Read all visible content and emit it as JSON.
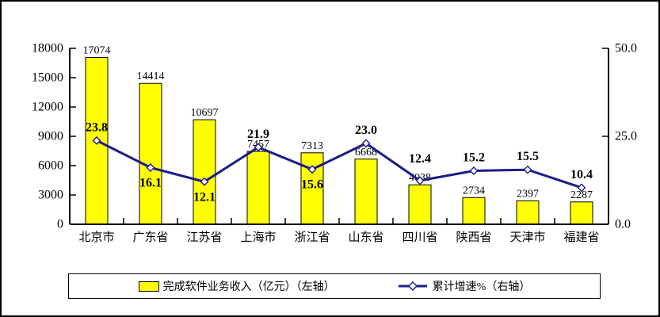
{
  "chart_data": {
    "type": "bar",
    "combo": "bar+line",
    "title": "",
    "categories": [
      "北京市",
      "广东省",
      "江苏省",
      "上海市",
      "浙江省",
      "山东省",
      "四川省",
      "陕西省",
      "天津市",
      "福建省"
    ],
    "series": [
      {
        "name": "完成软件业务收入（亿元）（左轴）",
        "render": "bar",
        "axis": "left",
        "values": [
          17074,
          14414,
          10697,
          7457,
          7313,
          6668,
          4038,
          2734,
          2397,
          2287
        ],
        "color": "#FFFF00",
        "border_color": "#000000"
      },
      {
        "name": "累计增速%（右轴）",
        "render": "line",
        "axis": "right",
        "values": [
          23.8,
          16.1,
          12.1,
          21.9,
          15.6,
          23.0,
          12.4,
          15.2,
          15.5,
          10.4
        ],
        "color": "#1B1B8C",
        "marker": "open-diamond",
        "marker_fill": "#FFFFFF"
      }
    ],
    "left_axis": {
      "min": 0,
      "max": 18000,
      "step": 3000,
      "tick_labels": [
        "0",
        "3000",
        "6000",
        "9000",
        "12000",
        "15000",
        "18000"
      ]
    },
    "right_axis": {
      "min": 0,
      "max": 50,
      "tick_labels": [
        "0.0",
        "25.0",
        "50.0"
      ],
      "tick_values": [
        0,
        25,
        50
      ]
    },
    "grid": false,
    "legend_position": "bottom",
    "layout_hints": {
      "line_label_below_indices": [
        1,
        2,
        4
      ],
      "line_label_dy_override": {
        "6": -23
      },
      "text_color": "#000000",
      "axis_color": "#000000"
    }
  }
}
